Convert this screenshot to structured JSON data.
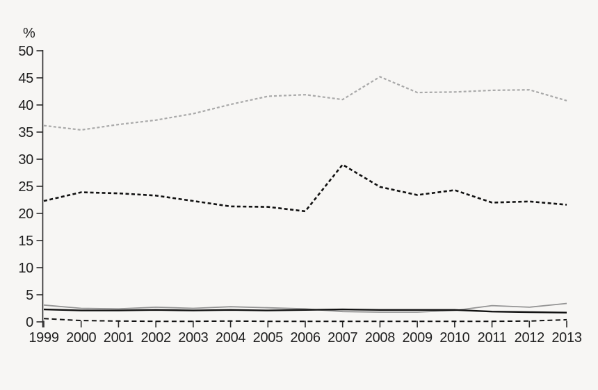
{
  "chart_data": {
    "type": "line",
    "title": "",
    "xlabel": "",
    "ylabel": "%",
    "x": [
      1999,
      2000,
      2001,
      2002,
      2003,
      2004,
      2005,
      2006,
      2007,
      2008,
      2009,
      2010,
      2011,
      2012,
      2013
    ],
    "ylim": [
      0,
      50
    ],
    "ytick_step": 5,
    "grid": false,
    "legend": "none",
    "series": [
      {
        "name": "upper-gray-dashed-line",
        "color": "#a9a9a9",
        "dash": "4 3",
        "width": 2.2,
        "values": [
          36.2,
          35.4,
          36.4,
          37.2,
          38.4,
          40.1,
          41.6,
          41.9,
          41.0,
          45.2,
          42.3,
          42.4,
          42.7,
          42.8,
          40.8
        ]
      },
      {
        "name": "black-dashed-line",
        "color": "#111111",
        "dash": "5 3.5",
        "width": 2.6,
        "values": [
          22.3,
          23.9,
          23.7,
          23.3,
          22.3,
          21.3,
          21.2,
          20.4,
          29.0,
          24.9,
          23.4,
          24.3,
          22.0,
          22.2,
          21.6
        ]
      },
      {
        "name": "gray-solid-line",
        "color": "#949494",
        "dash": "",
        "width": 1.8,
        "values": [
          3.1,
          2.5,
          2.4,
          2.7,
          2.5,
          2.8,
          2.6,
          2.4,
          1.9,
          1.8,
          1.8,
          2.1,
          3.0,
          2.7,
          3.4
        ]
      },
      {
        "name": "black-solid-line",
        "color": "#111111",
        "dash": "",
        "width": 2.4,
        "values": [
          2.3,
          2.1,
          2.1,
          2.2,
          2.1,
          2.2,
          2.1,
          2.2,
          2.3,
          2.2,
          2.2,
          2.2,
          1.9,
          1.8,
          1.7
        ]
      },
      {
        "name": "bottom-black-long-dashed-line",
        "color": "#111111",
        "dash": "7 4.5",
        "width": 2.0,
        "values": [
          0.6,
          0.25,
          0.15,
          0.1,
          0.1,
          0.15,
          0.1,
          0.1,
          0.1,
          0.1,
          0.1,
          0.1,
          0.1,
          0.15,
          0.4
        ]
      }
    ],
    "colors": {
      "background": "#f7f6f4",
      "axis": "#2a2a2a",
      "text": "#1f1f1f"
    }
  }
}
